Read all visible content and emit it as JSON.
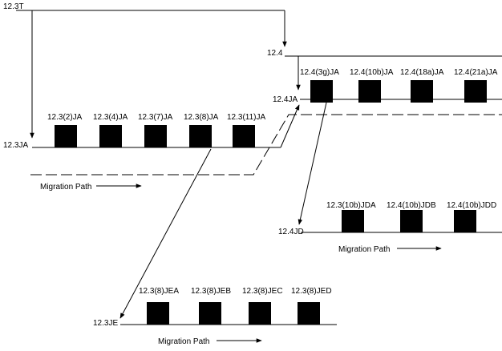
{
  "labels": {
    "t12_3T": "12.3T",
    "t12_4": "12.4",
    "t12_4JA": "12.4JA",
    "t12_3JA": "12.3JA",
    "t12_4JD": "12.4JD",
    "t12_3JE": "12.3JE"
  },
  "ja_releases": [
    "12.3(2)JA",
    "12.3(4)JA",
    "12.3(7)JA",
    "12.3(8)JA",
    "12.3(11)JA"
  ],
  "ja124_releases": [
    "12.4(3g)JA",
    "12.4(10b)JA",
    "12.4(18a)JA",
    "12.4(21a)JA"
  ],
  "jd_releases": [
    "12.3(10b)JDA",
    "12.4(10b)JDB",
    "12.4(10b)JDD"
  ],
  "je_releases": [
    "12.3(8)JEA",
    "12.3(8)JEB",
    "12.3(8)JEC",
    "12.3(8)JED"
  ],
  "migration_path_label": "Migration Path",
  "colors": {
    "line": "#000000",
    "box": "#000000",
    "background": "#ffffff"
  }
}
